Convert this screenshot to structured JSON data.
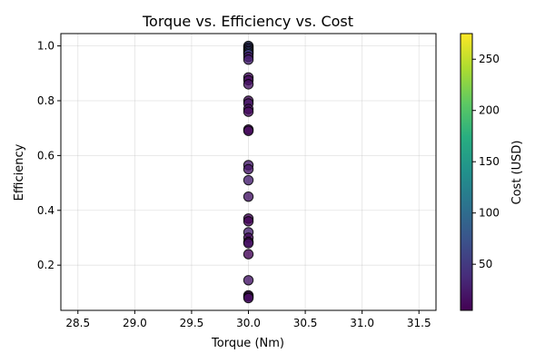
{
  "chart_data": {
    "type": "scatter",
    "title": "Torque vs. Efficiency vs. Cost",
    "xlabel": "Torque (Nm)",
    "ylabel": "Efficiency",
    "xlim": [
      28.35,
      31.65
    ],
    "ylim": [
      0.035,
      1.045
    ],
    "xticks": [
      28.5,
      29.0,
      29.5,
      30.0,
      30.5,
      31.0,
      31.5
    ],
    "xtick_labels": [
      "28.5",
      "29.0",
      "29.5",
      "30.0",
      "30.5",
      "31.0",
      "31.5"
    ],
    "yticks": [
      0.2,
      0.4,
      0.6,
      0.8,
      1.0
    ],
    "ytick_labels": [
      "0.2",
      "0.4",
      "0.6",
      "0.8",
      "1.0"
    ],
    "grid": true,
    "colorbar": {
      "label": "Cost (USD)",
      "colormap": "viridis",
      "range": [
        5,
        275
      ],
      "ticks": [
        50,
        100,
        150,
        200,
        250
      ],
      "tick_labels": [
        "50",
        "100",
        "150",
        "200",
        "250"
      ]
    },
    "points": [
      {
        "x": 30,
        "y": 1.0,
        "c": 75
      },
      {
        "x": 30,
        "y": 0.995,
        "c": 40
      },
      {
        "x": 30,
        "y": 0.99,
        "c": 80
      },
      {
        "x": 30,
        "y": 0.985,
        "c": 35
      },
      {
        "x": 30,
        "y": 0.98,
        "c": 60
      },
      {
        "x": 30,
        "y": 0.975,
        "c": 90
      },
      {
        "x": 30,
        "y": 0.97,
        "c": 45
      },
      {
        "x": 30,
        "y": 0.96,
        "c": 20
      },
      {
        "x": 30,
        "y": 0.95,
        "c": 30
      },
      {
        "x": 30,
        "y": 0.885,
        "c": 15
      },
      {
        "x": 30,
        "y": 0.875,
        "c": 12
      },
      {
        "x": 30,
        "y": 0.86,
        "c": 18
      },
      {
        "x": 30,
        "y": 0.8,
        "c": 14
      },
      {
        "x": 30,
        "y": 0.79,
        "c": 20
      },
      {
        "x": 30,
        "y": 0.77,
        "c": 16
      },
      {
        "x": 30,
        "y": 0.76,
        "c": 12
      },
      {
        "x": 30,
        "y": 0.695,
        "c": 8
      },
      {
        "x": 30,
        "y": 0.69,
        "c": 10
      },
      {
        "x": 30,
        "y": 0.565,
        "c": 25
      },
      {
        "x": 30,
        "y": 0.55,
        "c": 22
      },
      {
        "x": 30,
        "y": 0.51,
        "c": 28
      },
      {
        "x": 30,
        "y": 0.45,
        "c": 20
      },
      {
        "x": 30,
        "y": 0.37,
        "c": 10
      },
      {
        "x": 30,
        "y": 0.36,
        "c": 8
      },
      {
        "x": 30,
        "y": 0.32,
        "c": 30
      },
      {
        "x": 30,
        "y": 0.3,
        "c": 12
      },
      {
        "x": 30,
        "y": 0.285,
        "c": 10
      },
      {
        "x": 30,
        "y": 0.28,
        "c": 18
      },
      {
        "x": 30,
        "y": 0.24,
        "c": 8
      },
      {
        "x": 30,
        "y": 0.145,
        "c": 22
      },
      {
        "x": 30,
        "y": 0.09,
        "c": 12
      },
      {
        "x": 30,
        "y": 0.085,
        "c": 10
      },
      {
        "x": 30,
        "y": 0.08,
        "c": 15
      }
    ]
  }
}
